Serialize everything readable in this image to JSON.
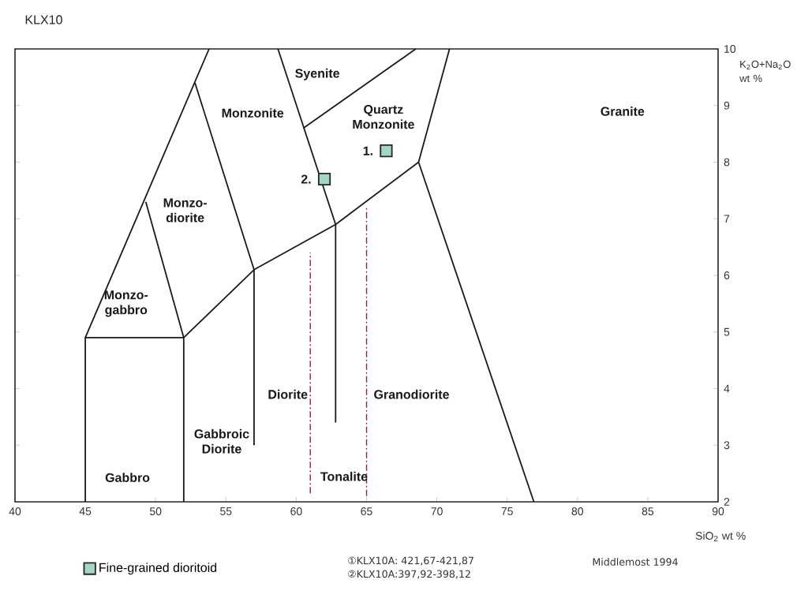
{
  "chart_data": {
    "type": "scatter",
    "title": "KLX10",
    "xlabel": "SiO$_{2}$ wt %",
    "ylabel": "K$_{2}$O+Na$_{2}$O wt %",
    "xlim": [
      40,
      90
    ],
    "ylim": [
      2,
      10
    ],
    "xticks": [
      40,
      45,
      50,
      55,
      60,
      65,
      70,
      75,
      80,
      85,
      90
    ],
    "yticks": [
      2,
      3,
      4,
      5,
      6,
      7,
      8,
      9,
      10
    ],
    "legend": "bottom left",
    "series": [
      {
        "name": "Fine-grained dioritoid",
        "marker": "square",
        "color": "#a3d6c6",
        "x": [
          66.4,
          62.0
        ],
        "values": [
          8.2,
          7.7
        ]
      },
      {
        "type": "line",
        "color": "#1a1a1a",
        "x": [
          45,
          53.8
        ],
        "values": [
          4.9,
          10
        ]
      },
      {
        "type": "line",
        "color": "#1a1a1a",
        "x": [
          45,
          45,
          52,
          52
        ],
        "values": [
          2,
          4.9,
          4.9,
          2
        ]
      },
      {
        "type": "line",
        "color": "#1a1a1a",
        "x": [
          52,
          49.3
        ],
        "values": [
          4.9,
          7.3
        ]
      },
      {
        "type": "line",
        "color": "#1a1a1a",
        "x": [
          52.8,
          57,
          57
        ],
        "values": [
          9.4,
          6.1,
          3.0
        ]
      },
      {
        "type": "line",
        "color": "#1a1a1a",
        "x": [
          52,
          57,
          62.8,
          68.7
        ],
        "values": [
          4.9,
          6.1,
          6.9,
          8.0
        ]
      },
      {
        "type": "line",
        "color": "#1a1a1a",
        "x": [
          58.7,
          62.8,
          62.8
        ],
        "values": [
          10,
          6.9,
          3.4
        ]
      },
      {
        "type": "line",
        "color": "#1a1a1a",
        "x": [
          60.5,
          68.5
        ],
        "values": [
          8.6,
          10
        ]
      },
      {
        "type": "line",
        "color": "#1a1a1a",
        "x": [
          68.7,
          70.9
        ],
        "values": [
          8.0,
          10
        ]
      },
      {
        "type": "line",
        "color": "#1a1a1a",
        "x": [
          68.7,
          76.9
        ],
        "values": [
          8.0,
          2
        ]
      },
      {
        "type": "line",
        "color": "#a0203a",
        "line_style": "dashed",
        "x": [
          61,
          61
        ],
        "values": [
          2.15,
          6.4
        ]
      },
      {
        "type": "line",
        "color": "#a0203a",
        "line_style": "dashed",
        "x": [
          65,
          65
        ],
        "values": [
          2.1,
          7.2
        ]
      }
    ],
    "annotations": [
      "Syenite",
      "Monzonite",
      "Quartz Monzonite",
      "Granite",
      "Monzo-diorite",
      "Monzo-gabbro",
      "Diorite",
      "Granodiorite",
      "Gabbroic Diorite",
      "Gabbro",
      "Tonalite",
      {
        "text": "1.",
        "x": 66.4,
        "y": 8.2
      },
      {
        "text": "2.",
        "x": 62.0,
        "y": 7.7
      },
      "①KLX10A: 421,67-421,87",
      "②KLX10A:397,92-398,12",
      "Middlemost 1994"
    ]
  }
}
